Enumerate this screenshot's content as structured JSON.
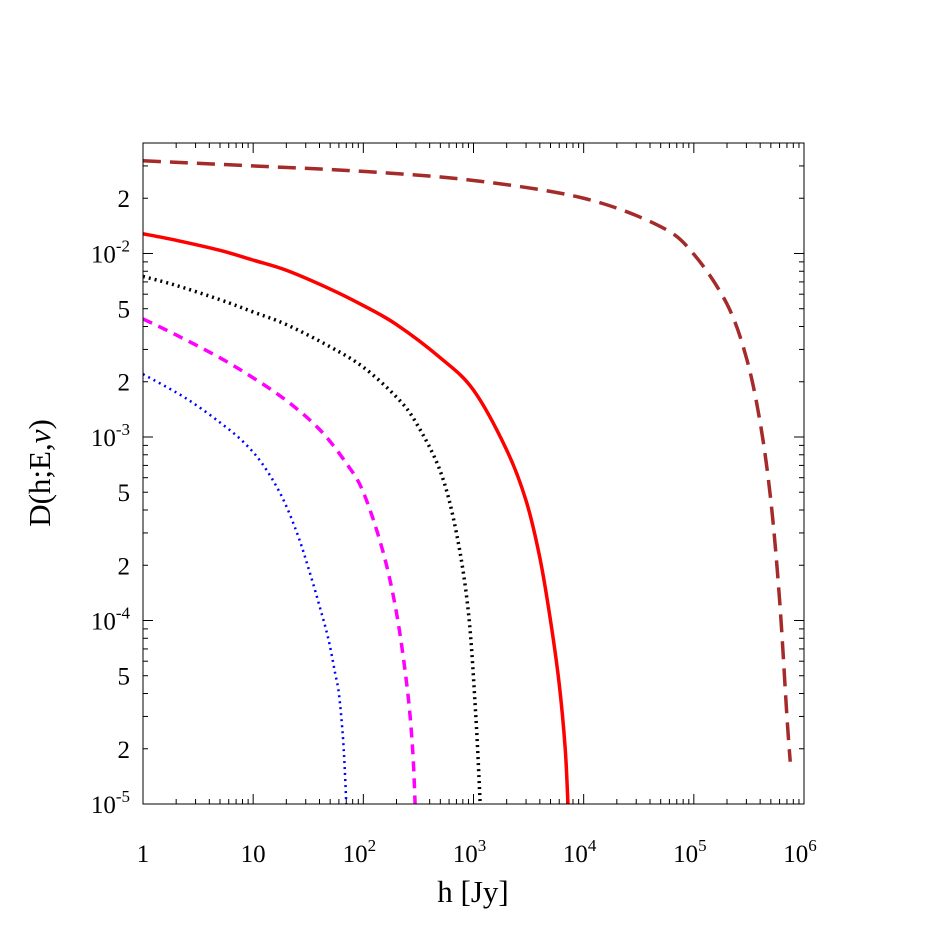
{
  "chart_data": {
    "type": "line",
    "xscale": "log",
    "yscale": "log",
    "xlim": [
      1,
      1000000
    ],
    "ylim": [
      1e-05,
      0.04
    ],
    "xlabel": "h [Jy]",
    "ylabel_parts": {
      "main": "D(h;E,",
      "greek": "ν",
      "close": ")"
    },
    "x_ticks": [
      {
        "value": 1,
        "base": "1",
        "exp": ""
      },
      {
        "value": 10,
        "base": "10",
        "exp": ""
      },
      {
        "value": 100,
        "base": "10",
        "exp": "2"
      },
      {
        "value": 1000,
        "base": "10",
        "exp": "3"
      },
      {
        "value": 10000,
        "base": "10",
        "exp": "4"
      },
      {
        "value": 100000,
        "base": "10",
        "exp": "5"
      },
      {
        "value": 1000000,
        "base": "10",
        "exp": "6"
      }
    ],
    "y_ticks": [
      {
        "value": 1e-05,
        "base": "10",
        "exp": "-5"
      },
      {
        "value": 2e-05,
        "base": "2",
        "exp": ""
      },
      {
        "value": 5e-05,
        "base": "5",
        "exp": ""
      },
      {
        "value": 0.0001,
        "base": "10",
        "exp": "-4"
      },
      {
        "value": 0.0002,
        "base": "2",
        "exp": ""
      },
      {
        "value": 0.0005,
        "base": "5",
        "exp": ""
      },
      {
        "value": 0.001,
        "base": "10",
        "exp": "-3"
      },
      {
        "value": 0.002,
        "base": "2",
        "exp": ""
      },
      {
        "value": 0.005,
        "base": "5",
        "exp": ""
      },
      {
        "value": 0.01,
        "base": "10",
        "exp": "-2"
      },
      {
        "value": 0.02,
        "base": "2",
        "exp": ""
      }
    ],
    "series": [
      {
        "color": "#0000ff",
        "dash": "dotted",
        "width": 2.5,
        "x": [
          1,
          2,
          3,
          5,
          8,
          12,
          18,
          25,
          32,
          40,
          48,
          55,
          60,
          65,
          68,
          70
        ],
        "y": [
          0.0022,
          0.00175,
          0.0015,
          0.0012,
          0.00095,
          0.00072,
          0.00048,
          0.0003,
          0.00019,
          0.00012,
          8e-05,
          5.3e-05,
          4e-05,
          2.4e-05,
          1.5e-05,
          1e-05
        ]
      },
      {
        "color": "#ff00ff",
        "dash": "short-dash",
        "width": 3.5,
        "x": [
          1,
          2,
          5,
          10,
          20,
          40,
          70,
          100,
          150,
          200,
          250,
          280,
          295
        ],
        "y": [
          0.0044,
          0.0036,
          0.0027,
          0.0021,
          0.00158,
          0.0011,
          0.00072,
          0.0005,
          0.00024,
          0.00011,
          4.3e-05,
          2e-05,
          1e-05
        ]
      },
      {
        "color": "#000000",
        "dash": "dotted",
        "width": 3.5,
        "x": [
          1,
          2,
          5,
          10,
          20,
          50,
          100,
          200,
          300,
          500,
          700,
          900,
          1050,
          1150
        ],
        "y": [
          0.0075,
          0.0067,
          0.0056,
          0.0048,
          0.0041,
          0.0031,
          0.0024,
          0.00165,
          0.0012,
          0.00065,
          0.0003,
          0.00011,
          3e-05,
          1e-05
        ]
      },
      {
        "color": "#ff0000",
        "dash": "solid",
        "width": 3.5,
        "x": [
          1,
          2,
          5,
          10,
          20,
          50,
          100,
          200,
          500,
          1000,
          2000,
          3000,
          4000,
          5000,
          6000,
          6800,
          7200
        ],
        "y": [
          0.0128,
          0.0118,
          0.0104,
          0.0092,
          0.0081,
          0.0064,
          0.0052,
          0.0041,
          0.0027,
          0.0018,
          0.00085,
          0.00045,
          0.00022,
          0.0001,
          4.5e-05,
          2e-05,
          1e-05
        ]
      },
      {
        "color": "#a52a2a",
        "dash": "long-dash",
        "width": 3.5,
        "x": [
          1,
          10,
          100,
          1000,
          10000,
          50000,
          100000,
          200000,
          300000,
          400000,
          500000,
          600000,
          700000,
          750000
        ],
        "y": [
          0.032,
          0.03,
          0.028,
          0.025,
          0.02,
          0.014,
          0.0099,
          0.0053,
          0.0027,
          0.0012,
          0.00045,
          0.00013,
          3e-05,
          1.7e-05
        ]
      }
    ]
  }
}
